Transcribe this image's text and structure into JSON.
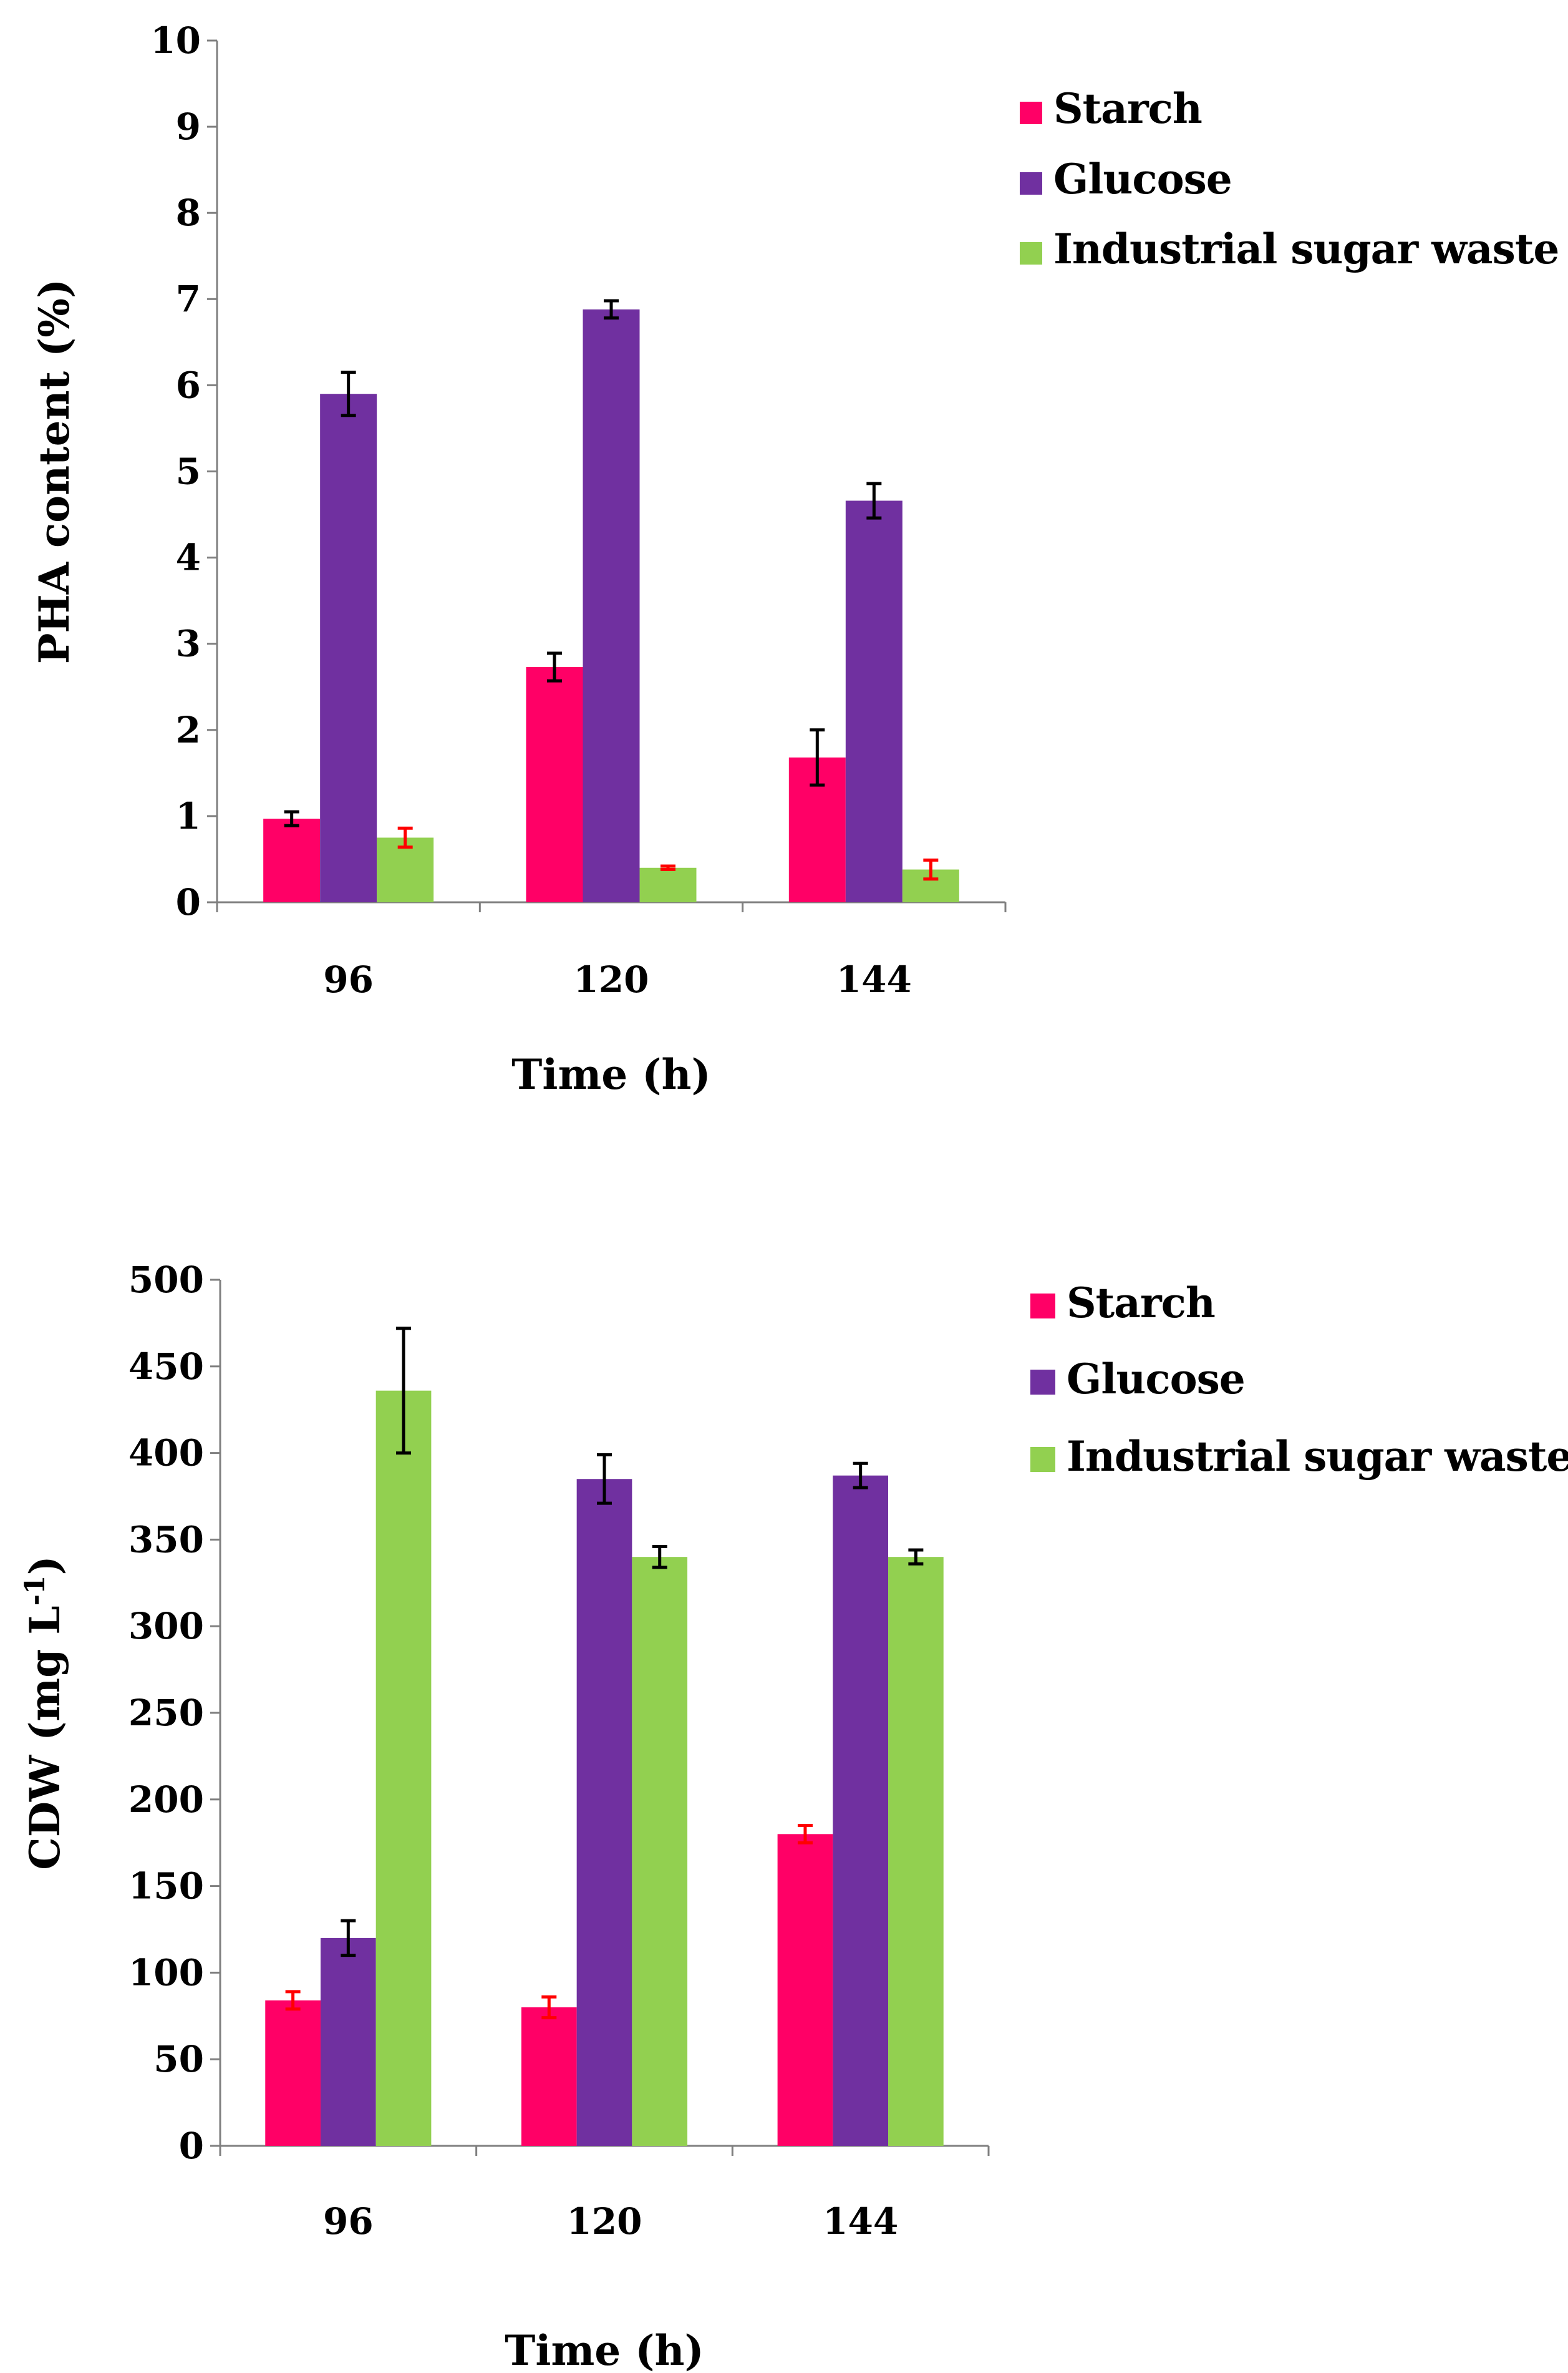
{
  "chart_data": [
    {
      "type": "bar",
      "title": "",
      "xlabel": "Time (h)",
      "ylabel": "PHA content (%)",
      "ylabel_sup": "",
      "ylabel_end": "",
      "ylim": [
        0,
        10
      ],
      "yticks": [
        0,
        1,
        2,
        3,
        4,
        5,
        6,
        7,
        8,
        9,
        10
      ],
      "categories": [
        "96",
        "120",
        "144"
      ],
      "legend_position": "top-right",
      "series": [
        {
          "name": "Starch",
          "color": "#ff0066",
          "values": [
            0.97,
            2.73,
            1.68
          ],
          "errors": [
            0.08,
            0.16,
            0.32
          ],
          "error_colors": [
            "#000000",
            "#000000",
            "#000000"
          ]
        },
        {
          "name": "Glucose",
          "color": "#7030a0",
          "values": [
            5.9,
            6.88,
            4.66
          ],
          "errors": [
            0.25,
            0.1,
            0.2
          ],
          "error_colors": [
            "#000000",
            "#000000",
            "#000000"
          ]
        },
        {
          "name": "Industrial sugar waste",
          "color": "#92d050",
          "values": [
            0.75,
            0.4,
            0.38
          ],
          "errors": [
            0.11,
            0.02,
            0.11
          ],
          "error_colors": [
            "#ff0000",
            "#ff0000",
            "#ff0000"
          ]
        }
      ]
    },
    {
      "type": "bar",
      "title": "",
      "xlabel": "Time (h)",
      "ylabel": "CDW (mg L",
      "ylabel_sup": "-1",
      "ylabel_end": ")",
      "ylim": [
        0,
        500
      ],
      "yticks": [
        0,
        50,
        100,
        150,
        200,
        250,
        300,
        350,
        400,
        450,
        500
      ],
      "categories": [
        "96",
        "120",
        "144"
      ],
      "legend_position": "top-right",
      "series": [
        {
          "name": "Starch",
          "color": "#ff0066",
          "values": [
            84,
            80,
            180
          ],
          "errors": [
            5,
            6,
            5
          ],
          "error_colors": [
            "#ff0000",
            "#ff0000",
            "#ff0000"
          ]
        },
        {
          "name": "Glucose",
          "color": "#7030a0",
          "values": [
            120,
            385,
            387
          ],
          "errors": [
            10,
            14,
            7
          ],
          "error_colors": [
            "#000000",
            "#000000",
            "#000000"
          ]
        },
        {
          "name": "Industrial sugar waste",
          "color": "#92d050",
          "values": [
            436,
            340,
            340
          ],
          "errors": [
            36,
            6,
            4
          ],
          "error_colors": [
            "#000000",
            "#000000",
            "#000000"
          ]
        }
      ]
    }
  ]
}
